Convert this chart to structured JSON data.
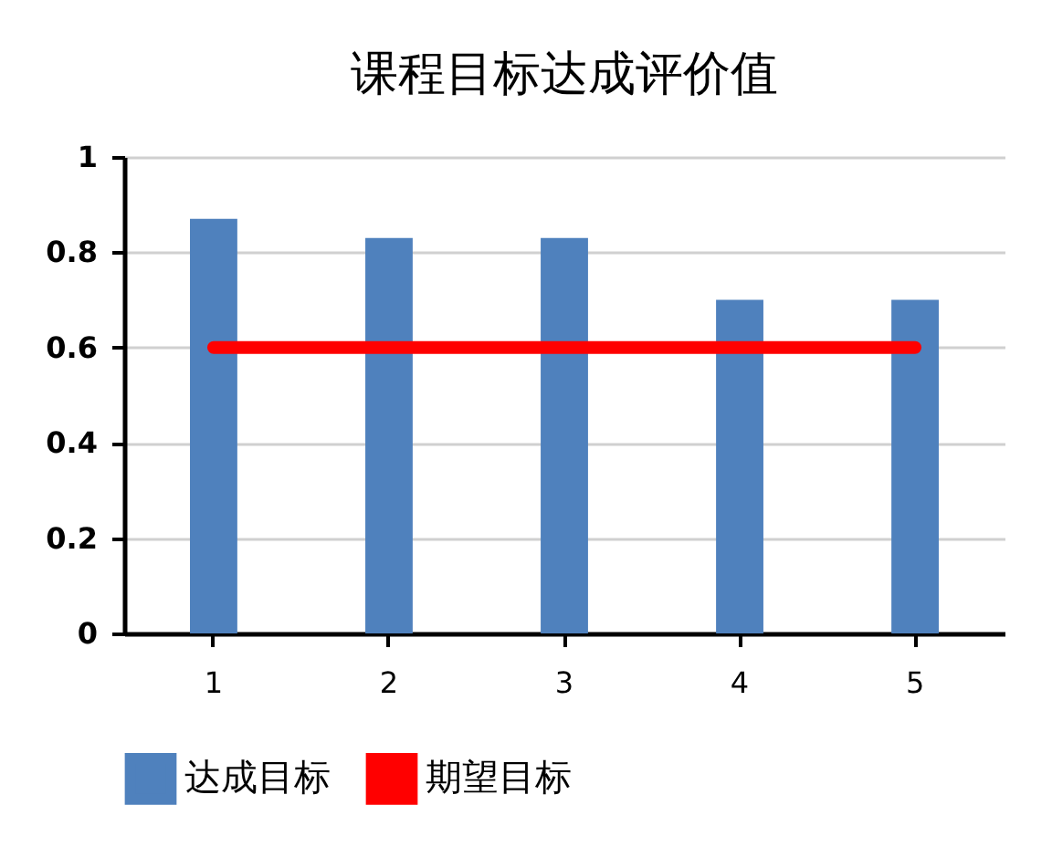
{
  "chart_data": {
    "type": "bar",
    "title": "课程目标达成评价值",
    "categories": [
      "1",
      "2",
      "3",
      "4",
      "5"
    ],
    "series": [
      {
        "name": "达成目标",
        "color": "#4f81bd",
        "values": [
          0.87,
          0.83,
          0.83,
          0.7,
          0.7
        ]
      },
      {
        "name": "期望目标",
        "type": "line",
        "color": "#ff0000",
        "values": [
          0.6,
          0.6,
          0.6,
          0.6,
          0.6
        ]
      }
    ],
    "ylim": [
      0,
      1
    ],
    "yticks": [
      0,
      0.2,
      0.4,
      0.6,
      0.8,
      1
    ],
    "grid": "y",
    "legend": "bottom"
  }
}
